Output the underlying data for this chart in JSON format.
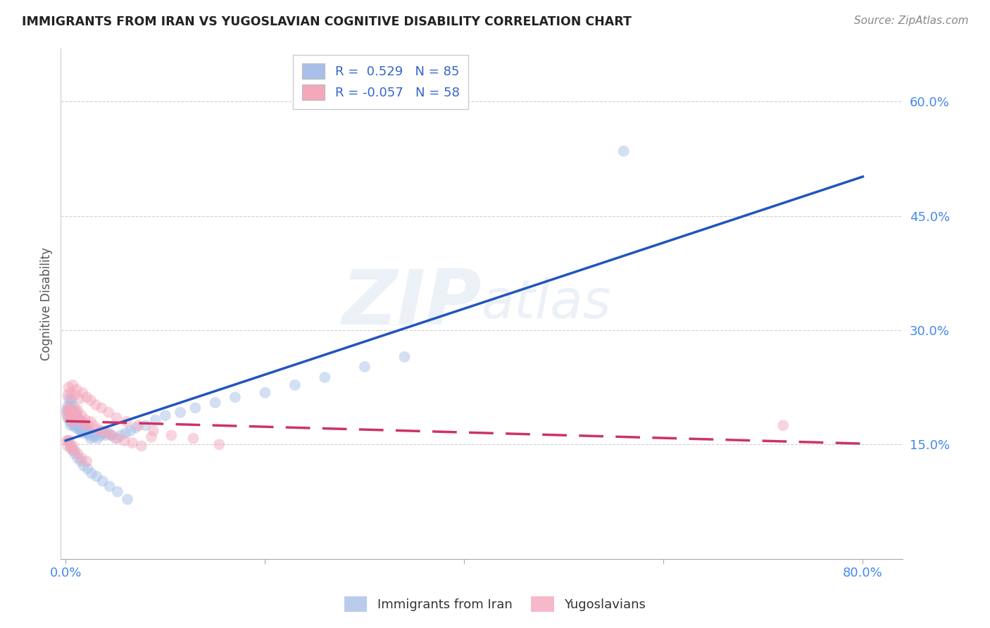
{
  "title": "IMMIGRANTS FROM IRAN VS YUGOSLAVIAN COGNITIVE DISABILITY CORRELATION CHART",
  "source": "Source: ZipAtlas.com",
  "ylabel": "Cognitive Disability",
  "xlim": [
    -0.005,
    0.84
  ],
  "ylim": [
    0.0,
    0.67
  ],
  "watermark": "ZIPatlas",
  "legend_color1": "#a8c0e8",
  "legend_color2": "#f4a8bc",
  "scatter_color1": "#a8c0e8",
  "scatter_color2": "#f4a8bc",
  "line_color1": "#2255bb",
  "line_color2": "#cc3366",
  "tick_color": "#4488ee",
  "background_color": "#ffffff",
  "iran_x": [
    0.001,
    0.002,
    0.002,
    0.003,
    0.003,
    0.004,
    0.004,
    0.005,
    0.005,
    0.006,
    0.006,
    0.006,
    0.007,
    0.007,
    0.008,
    0.008,
    0.008,
    0.009,
    0.009,
    0.01,
    0.01,
    0.01,
    0.011,
    0.011,
    0.012,
    0.012,
    0.013,
    0.013,
    0.014,
    0.014,
    0.015,
    0.015,
    0.016,
    0.016,
    0.017,
    0.017,
    0.018,
    0.019,
    0.02,
    0.021,
    0.022,
    0.023,
    0.024,
    0.025,
    0.026,
    0.028,
    0.03,
    0.032,
    0.035,
    0.038,
    0.04,
    0.043,
    0.046,
    0.05,
    0.055,
    0.06,
    0.065,
    0.07,
    0.08,
    0.09,
    0.1,
    0.115,
    0.13,
    0.15,
    0.17,
    0.2,
    0.23,
    0.26,
    0.3,
    0.34,
    0.003,
    0.005,
    0.007,
    0.009,
    0.012,
    0.015,
    0.018,
    0.022,
    0.026,
    0.031,
    0.037,
    0.044,
    0.052,
    0.062,
    0.56
  ],
  "iran_y": [
    0.195,
    0.2,
    0.185,
    0.21,
    0.19,
    0.18,
    0.195,
    0.175,
    0.205,
    0.185,
    0.195,
    0.21,
    0.18,
    0.19,
    0.175,
    0.185,
    0.2,
    0.178,
    0.188,
    0.182,
    0.172,
    0.192,
    0.178,
    0.188,
    0.175,
    0.185,
    0.17,
    0.18,
    0.172,
    0.182,
    0.168,
    0.178,
    0.17,
    0.18,
    0.165,
    0.175,
    0.17,
    0.168,
    0.172,
    0.165,
    0.168,
    0.165,
    0.162,
    0.158,
    0.165,
    0.16,
    0.162,
    0.158,
    0.162,
    0.165,
    0.162,
    0.165,
    0.162,
    0.158,
    0.162,
    0.165,
    0.168,
    0.172,
    0.175,
    0.182,
    0.188,
    0.192,
    0.198,
    0.205,
    0.212,
    0.218,
    0.228,
    0.238,
    0.252,
    0.265,
    0.155,
    0.148,
    0.142,
    0.138,
    0.132,
    0.128,
    0.122,
    0.118,
    0.112,
    0.108,
    0.102,
    0.095,
    0.088,
    0.078,
    0.535
  ],
  "yugo_x": [
    0.001,
    0.002,
    0.003,
    0.004,
    0.005,
    0.006,
    0.007,
    0.008,
    0.009,
    0.01,
    0.011,
    0.012,
    0.014,
    0.016,
    0.018,
    0.02,
    0.022,
    0.025,
    0.028,
    0.032,
    0.036,
    0.041,
    0.046,
    0.052,
    0.059,
    0.067,
    0.076,
    0.086,
    0.002,
    0.003,
    0.005,
    0.007,
    0.009,
    0.011,
    0.014,
    0.017,
    0.021,
    0.025,
    0.03,
    0.036,
    0.043,
    0.051,
    0.061,
    0.073,
    0.088,
    0.106,
    0.128,
    0.154,
    0.001,
    0.002,
    0.003,
    0.005,
    0.007,
    0.009,
    0.012,
    0.016,
    0.021,
    0.72
  ],
  "yugo_y": [
    0.19,
    0.195,
    0.185,
    0.2,
    0.185,
    0.195,
    0.18,
    0.19,
    0.185,
    0.195,
    0.188,
    0.195,
    0.182,
    0.188,
    0.178,
    0.182,
    0.175,
    0.18,
    0.175,
    0.17,
    0.168,
    0.165,
    0.162,
    0.158,
    0.155,
    0.152,
    0.148,
    0.16,
    0.215,
    0.225,
    0.218,
    0.228,
    0.215,
    0.222,
    0.21,
    0.218,
    0.212,
    0.208,
    0.202,
    0.198,
    0.192,
    0.185,
    0.18,
    0.175,
    0.168,
    0.162,
    0.158,
    0.15,
    0.155,
    0.148,
    0.155,
    0.145,
    0.148,
    0.142,
    0.138,
    0.132,
    0.128,
    0.175
  ]
}
